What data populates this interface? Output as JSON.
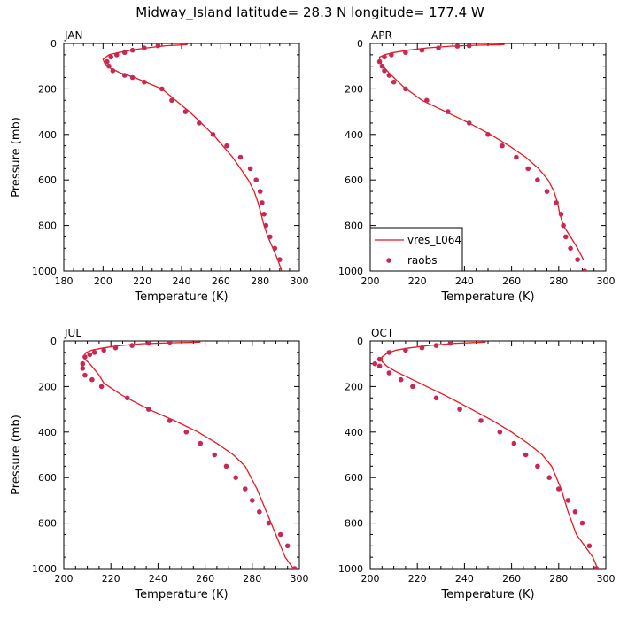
{
  "title": "Midway_Island  latitude= 28.3 N longitude= 177.4 W",
  "colors": {
    "model": "#e8191f",
    "obs": "#c42a55",
    "axis": "#000000"
  },
  "legend": {
    "model_label": "vres_L064",
    "obs_label": "raobs",
    "placement": "lower-left of APR panel"
  },
  "chart_data": [
    {
      "type": "line",
      "panel": "JAN",
      "label": "JAN",
      "xlabel": "Temperature (K)",
      "ylabel": "Pressure (mb)",
      "xlim": [
        180,
        300
      ],
      "ylim": [
        1000,
        0
      ],
      "xticks": [
        180,
        200,
        220,
        240,
        260,
        280,
        300
      ],
      "yticks": [
        0,
        200,
        400,
        600,
        800,
        1000
      ],
      "xtick_labels": [
        "180",
        "200",
        "220",
        "240",
        "260",
        "280",
        "300"
      ],
      "ytick_labels": [
        "0",
        "200",
        "400",
        "600",
        "800",
        "1000"
      ],
      "series": [
        {
          "name": "vres_L064",
          "kind": "line",
          "x": [
            243,
            232,
            222,
            214,
            208,
            203,
            200,
            201,
            204,
            209,
            216,
            223,
            230,
            237,
            244,
            250,
            256,
            261,
            266,
            270,
            274,
            277,
            279,
            280.5,
            282,
            284,
            286.5,
            289,
            291
          ],
          "y": [
            5,
            10,
            20,
            30,
            40,
            50,
            70,
            90,
            110,
            130,
            150,
            175,
            200,
            250,
            300,
            350,
            400,
            450,
            500,
            550,
            600,
            650,
            700,
            750,
            800,
            850,
            900,
            950,
            1000
          ]
        },
        {
          "name": "raobs",
          "kind": "scatter",
          "x": [
            228,
            221,
            215,
            211,
            207,
            204,
            202,
            203,
            205,
            211,
            215,
            221,
            230,
            235,
            242,
            249,
            256,
            263,
            270,
            275,
            278,
            280,
            281,
            282,
            283,
            285,
            287.5,
            290
          ],
          "y": [
            10,
            20,
            30,
            40,
            50,
            60,
            80,
            100,
            120,
            140,
            150,
            170,
            200,
            250,
            300,
            350,
            400,
            450,
            500,
            550,
            600,
            650,
            700,
            750,
            800,
            850,
            900,
            950
          ]
        }
      ]
    },
    {
      "type": "line",
      "panel": "APR",
      "label": "APR",
      "xlabel": "Temperature (K)",
      "ylabel": "",
      "xlim": [
        200,
        300
      ],
      "ylim": [
        1000,
        0
      ],
      "xticks": [
        200,
        220,
        240,
        260,
        280,
        300
      ],
      "yticks": [
        0,
        200,
        400,
        600,
        800,
        1000
      ],
      "xtick_labels": [
        "200",
        "220",
        "240",
        "260",
        "280",
        "300"
      ],
      "ytick_labels": [
        "0",
        "200",
        "400",
        "600",
        "800",
        "1000"
      ],
      "series": [
        {
          "name": "vres_L064",
          "kind": "line",
          "x": [
            257,
            244,
            234,
            224,
            216,
            210,
            206,
            204,
            204,
            205.5,
            208,
            211,
            214,
            222,
            232,
            242,
            251,
            259,
            266,
            271.5,
            275.5,
            278,
            279.5,
            280.5,
            282,
            285,
            288,
            290.5
          ],
          "y": [
            5,
            8,
            12,
            20,
            30,
            40,
            50,
            60,
            80,
            100,
            130,
            160,
            190,
            250,
            300,
            350,
            400,
            450,
            500,
            550,
            600,
            650,
            700,
            750,
            800,
            850,
            900,
            950
          ]
        },
        {
          "name": "raobs",
          "kind": "scatter",
          "x": [
            242,
            237,
            229,
            222,
            215,
            209,
            206,
            204,
            205,
            206,
            208,
            210,
            215,
            224,
            233,
            242,
            250,
            256,
            262,
            267,
            271,
            275,
            279,
            281,
            282,
            283,
            285,
            288,
            291
          ],
          "y": [
            10,
            12,
            20,
            30,
            40,
            50,
            60,
            80,
            100,
            120,
            140,
            170,
            200,
            250,
            300,
            350,
            400,
            450,
            500,
            550,
            600,
            650,
            700,
            750,
            800,
            850,
            900,
            950,
            1000
          ]
        }
      ]
    },
    {
      "type": "line",
      "panel": "JUL",
      "label": "JUL",
      "xlabel": "Temperature (K)",
      "ylabel": "Pressure (mb)",
      "xlim": [
        200,
        300
      ],
      "ylim": [
        1000,
        0
      ],
      "xticks": [
        200,
        220,
        240,
        260,
        280,
        300
      ],
      "yticks": [
        0,
        200,
        400,
        600,
        800,
        1000
      ],
      "xtick_labels": [
        "200",
        "220",
        "240",
        "260",
        "280",
        "300"
      ],
      "ytick_labels": [
        "0",
        "200",
        "400",
        "600",
        "800",
        "1000"
      ],
      "series": [
        {
          "name": "vres_L064",
          "kind": "line",
          "x": [
            258,
            245,
            233,
            224,
            217,
            212,
            209.5,
            208.5,
            209,
            211,
            213,
            215,
            217,
            225,
            236,
            247,
            257,
            265,
            272,
            277,
            282,
            286,
            290,
            294,
            297.5
          ],
          "y": [
            5,
            8,
            12,
            20,
            30,
            40,
            50,
            65,
            80,
            100,
            125,
            150,
            185,
            240,
            300,
            350,
            400,
            450,
            500,
            550,
            650,
            750,
            850,
            950,
            1000
          ]
        },
        {
          "name": "raobs",
          "kind": "scatter",
          "x": [
            245,
            236,
            229,
            222,
            217,
            213,
            211,
            209,
            208,
            208,
            209,
            212,
            216,
            227,
            236,
            245,
            252,
            258,
            264,
            269,
            273,
            277,
            280,
            283,
            287,
            292,
            295,
            298
          ],
          "y": [
            5,
            10,
            20,
            30,
            40,
            50,
            60,
            70,
            100,
            120,
            150,
            170,
            200,
            250,
            300,
            350,
            400,
            450,
            500,
            550,
            600,
            650,
            700,
            750,
            800,
            850,
            900,
            1000
          ]
        }
      ]
    },
    {
      "type": "line",
      "panel": "OCT",
      "label": "OCT",
      "xlabel": "Temperature (K)",
      "ylabel": "",
      "xlim": [
        200,
        300
      ],
      "ylim": [
        1000,
        0
      ],
      "xticks": [
        200,
        220,
        240,
        260,
        280,
        300
      ],
      "yticks": [
        0,
        200,
        400,
        600,
        800,
        1000
      ],
      "xtick_labels": [
        "200",
        "220",
        "240",
        "260",
        "280",
        "300"
      ],
      "ytick_labels": [
        "0",
        "200",
        "400",
        "600",
        "800",
        "1000"
      ],
      "series": [
        {
          "name": "vres_L064",
          "kind": "line",
          "x": [
            249,
            236,
            225,
            217,
            211,
            207,
            205,
            205,
            207,
            211,
            216,
            222,
            232,
            243,
            252,
            260,
            267,
            273,
            277,
            281,
            284,
            287.5,
            291,
            294.5,
            296.5
          ],
          "y": [
            5,
            10,
            20,
            30,
            40,
            55,
            70,
            90,
            110,
            135,
            160,
            190,
            240,
            300,
            350,
            400,
            450,
            500,
            550,
            650,
            750,
            850,
            900,
            950,
            1000
          ]
        },
        {
          "name": "raobs",
          "kind": "scatter",
          "x": [
            234,
            228,
            222,
            215,
            208,
            204,
            202,
            204,
            208,
            213,
            218,
            228,
            238,
            247,
            255,
            261,
            266,
            271,
            276,
            280,
            284,
            287,
            290,
            293,
            296
          ],
          "y": [
            10,
            20,
            30,
            40,
            50,
            80,
            100,
            110,
            140,
            170,
            200,
            250,
            300,
            350,
            400,
            450,
            500,
            550,
            600,
            650,
            700,
            750,
            800,
            900,
            1000
          ]
        }
      ]
    }
  ]
}
